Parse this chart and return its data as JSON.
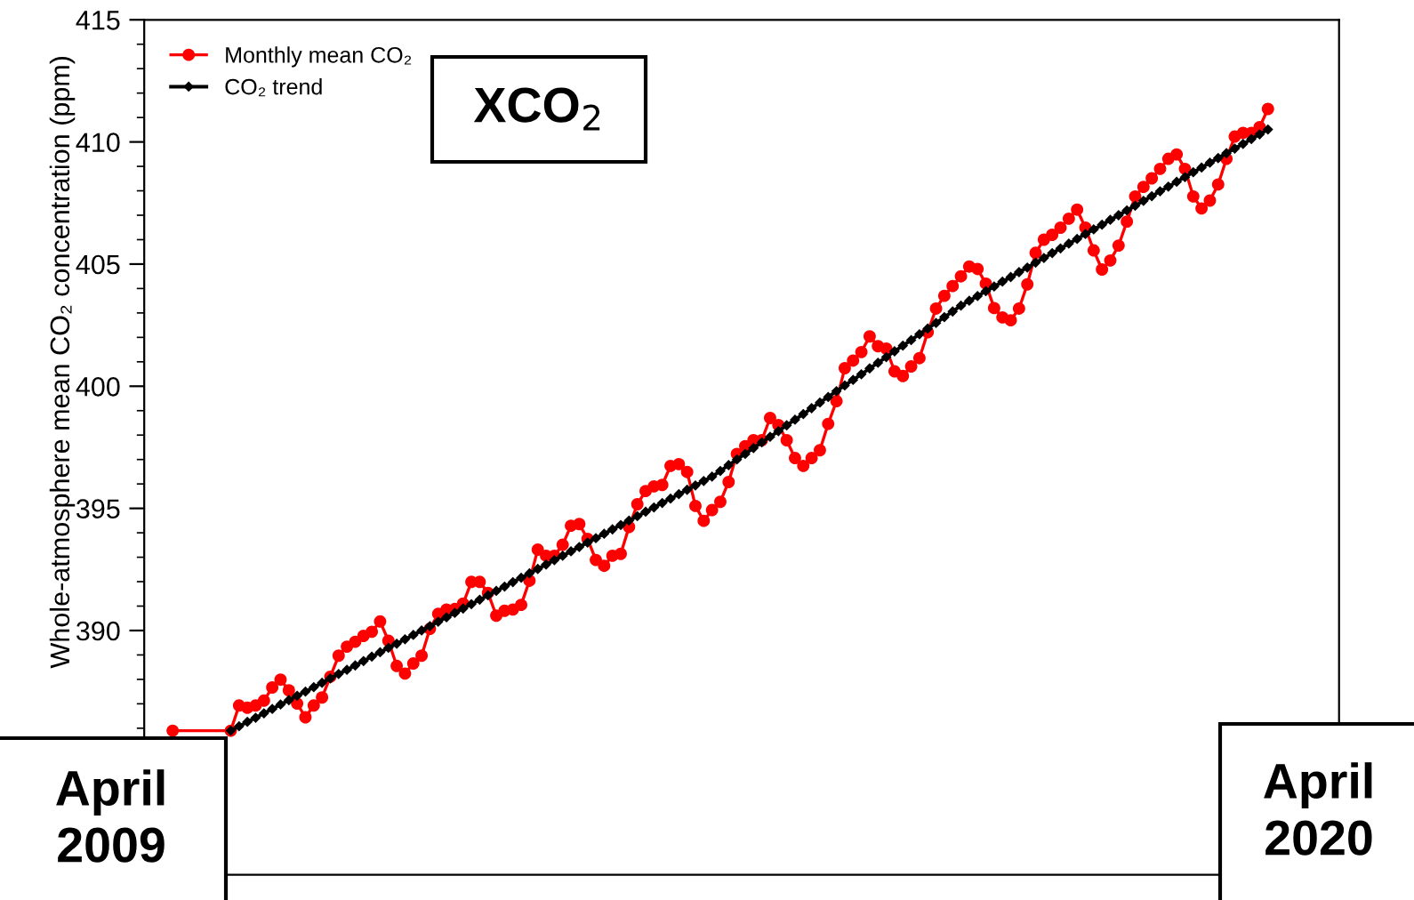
{
  "chart_data": {
    "type": "line",
    "ylabel": "Whole-atmosphere mean CO₂ concentration (ppm)",
    "categories": [
      null,
      null,
      null,
      null,
      null,
      null,
      null,
      null,
      null,
      null,
      null,
      null,
      null,
      null,
      null,
      null,
      null,
      null,
      null,
      null,
      null,
      null,
      null,
      null,
      null,
      null,
      null,
      null,
      null,
      null,
      null,
      null,
      null,
      null,
      null,
      null,
      null,
      null,
      null,
      null,
      null,
      null,
      null,
      null,
      null,
      null,
      null,
      null,
      null,
      null,
      null,
      null,
      null,
      null,
      null,
      null,
      null,
      null,
      null,
      null,
      null,
      null,
      null,
      null,
      null,
      null,
      null,
      null,
      null,
      null,
      null,
      null,
      null,
      null,
      null,
      null,
      null,
      null,
      null,
      null,
      null,
      null,
      null,
      null,
      null,
      null,
      null,
      null,
      null,
      null,
      null,
      null,
      null,
      null,
      null,
      null,
      null,
      null,
      null,
      null,
      null,
      null,
      null,
      null,
      null,
      null,
      null,
      null,
      null,
      null,
      null,
      null,
      null,
      null,
      null,
      null,
      null,
      null,
      null,
      null,
      null,
      null,
      null,
      null,
      null,
      null,
      null,
      null,
      null,
      null,
      null,
      null,
      null
    ],
    "series": [
      {
        "name": "Monthly mean CO₂",
        "color": "#ff0000",
        "marker": "circle",
        "values": [
          385.9,
          null,
          null,
          null,
          null,
          null,
          null,
          385.9,
          386.93,
          386.84,
          386.93,
          387.13,
          387.67,
          387.99,
          387.55,
          387.01,
          386.45,
          386.93,
          387.26,
          388.11,
          388.97,
          389.34,
          389.54,
          389.78,
          389.95,
          390.37,
          389.58,
          388.55,
          388.24,
          388.65,
          388.97,
          390.07,
          390.68,
          390.86,
          390.88,
          391.1,
          391.99,
          391.99,
          391.54,
          390.61,
          390.81,
          390.86,
          391.05,
          392.04,
          393.31,
          393.06,
          393.06,
          393.51,
          394.29,
          394.36,
          393.75,
          392.89,
          392.65,
          393.06,
          393.14,
          394.24,
          395.17,
          395.71,
          395.9,
          395.96,
          396.74,
          396.81,
          396.49,
          395.1,
          394.49,
          394.93,
          395.27,
          396.08,
          397.23,
          397.55,
          397.79,
          397.79,
          398.7,
          398.41,
          397.79,
          397.06,
          396.74,
          397.06,
          397.38,
          398.46,
          399.39,
          400.74,
          401.05,
          401.4,
          402.04,
          401.64,
          401.54,
          400.61,
          400.42,
          400.81,
          401.15,
          402.21,
          403.18,
          403.7,
          404.1,
          404.5,
          404.9,
          404.8,
          404.2,
          403.2,
          402.82,
          402.7,
          403.18,
          404.17,
          405.46,
          406.0,
          406.2,
          406.49,
          406.86,
          407.23,
          406.49,
          405.56,
          404.78,
          405.15,
          405.76,
          406.74,
          407.77,
          408.16,
          408.51,
          408.9,
          409.31,
          409.49,
          408.9,
          407.77,
          407.28,
          407.6,
          408.26,
          409.31,
          410.22,
          410.37,
          410.37,
          410.61,
          411.35
        ]
      },
      {
        "name": "CO₂ trend",
        "color": "#000000",
        "marker": "diamond",
        "values": [
          null,
          null,
          null,
          null,
          null,
          null,
          null,
          385.9,
          386.08,
          386.26,
          386.43,
          386.61,
          386.79,
          386.97,
          387.15,
          387.33,
          387.5,
          387.68,
          387.86,
          388.04,
          388.22,
          388.39,
          388.57,
          388.75,
          388.93,
          389.11,
          389.29,
          389.46,
          389.64,
          389.82,
          390.0,
          390.18,
          390.36,
          390.54,
          390.72,
          390.9,
          391.08,
          391.26,
          391.44,
          391.62,
          391.8,
          391.98,
          392.16,
          392.34,
          392.52,
          392.7,
          392.88,
          393.06,
          393.24,
          393.42,
          393.6,
          393.78,
          393.96,
          394.14,
          394.32,
          394.5,
          394.68,
          394.86,
          395.04,
          395.22,
          395.4,
          395.58,
          395.76,
          395.94,
          396.12,
          396.3,
          396.53,
          396.77,
          397.0,
          397.23,
          397.47,
          397.7,
          397.93,
          398.16,
          398.4,
          398.63,
          398.86,
          399.1,
          399.33,
          399.56,
          399.8,
          400.03,
          400.26,
          400.49,
          400.73,
          400.96,
          401.19,
          401.43,
          401.66,
          401.89,
          402.13,
          402.36,
          402.59,
          402.83,
          403.06,
          403.3,
          403.5,
          403.69,
          403.89,
          404.08,
          404.28,
          404.47,
          404.67,
          404.86,
          405.06,
          405.25,
          405.45,
          405.64,
          405.84,
          406.03,
          406.23,
          406.42,
          406.61,
          406.81,
          407.0,
          407.2,
          407.39,
          407.59,
          407.78,
          407.98,
          408.17,
          408.37,
          408.56,
          408.76,
          408.95,
          409.15,
          409.34,
          409.54,
          409.73,
          409.92,
          410.12,
          410.31,
          410.51
        ]
      }
    ],
    "ylim": [
      380,
      415
    ],
    "yticks": [
      390,
      395,
      400,
      405,
      410,
      415
    ],
    "grid": false,
    "legend": "top left",
    "annotations": [
      "XCO$_{2}$",
      "April\n2009",
      "April\n2020"
    ]
  }
}
